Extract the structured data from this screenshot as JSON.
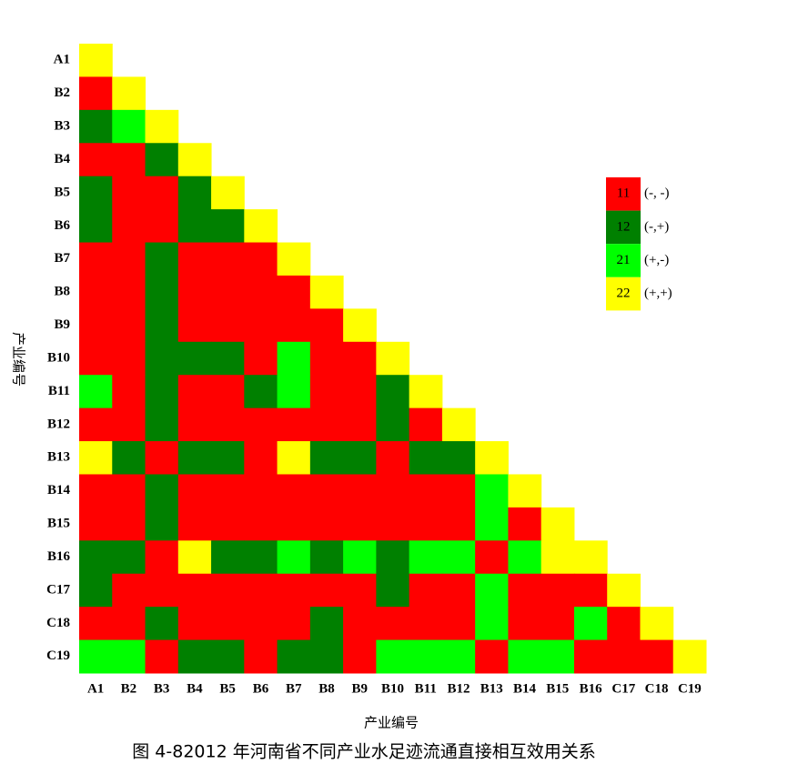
{
  "chart_data": {
    "type": "heatmap",
    "categories": [
      "A1",
      "B2",
      "B3",
      "B4",
      "B5",
      "B6",
      "B7",
      "B8",
      "B9",
      "B10",
      "B11",
      "B12",
      "B13",
      "B14",
      "B15",
      "B16",
      "C17",
      "C18",
      "C19"
    ],
    "x_label": "产业编号",
    "y_label": "产业编号",
    "caption": "图 4-82012 年河南省不同产业水足迹流通直接相互效用关系",
    "matrix": [
      [
        22
      ],
      [
        11,
        22
      ],
      [
        12,
        21,
        22
      ],
      [
        11,
        11,
        12,
        22
      ],
      [
        12,
        11,
        11,
        12,
        22
      ],
      [
        12,
        11,
        11,
        12,
        12,
        22
      ],
      [
        11,
        11,
        12,
        11,
        11,
        11,
        22
      ],
      [
        11,
        11,
        12,
        11,
        11,
        11,
        11,
        22
      ],
      [
        11,
        11,
        12,
        11,
        11,
        11,
        11,
        11,
        22
      ],
      [
        11,
        11,
        12,
        12,
        12,
        11,
        21,
        11,
        11,
        22
      ],
      [
        21,
        11,
        12,
        11,
        11,
        12,
        21,
        11,
        11,
        12,
        22
      ],
      [
        11,
        11,
        12,
        11,
        11,
        11,
        11,
        11,
        11,
        12,
        11,
        22
      ],
      [
        22,
        12,
        11,
        12,
        12,
        11,
        22,
        12,
        12,
        11,
        12,
        12,
        22
      ],
      [
        11,
        11,
        12,
        11,
        11,
        11,
        11,
        11,
        11,
        11,
        11,
        11,
        21,
        22
      ],
      [
        11,
        11,
        12,
        11,
        11,
        11,
        11,
        11,
        11,
        11,
        11,
        11,
        21,
        11,
        22
      ],
      [
        12,
        12,
        11,
        22,
        12,
        12,
        21,
        12,
        21,
        12,
        21,
        21,
        11,
        21,
        22,
        22
      ],
      [
        12,
        11,
        11,
        11,
        11,
        11,
        11,
        11,
        11,
        12,
        11,
        11,
        21,
        11,
        11,
        11,
        22
      ],
      [
        11,
        11,
        12,
        11,
        11,
        11,
        11,
        12,
        11,
        11,
        11,
        11,
        21,
        11,
        11,
        21,
        11,
        22
      ],
      [
        21,
        21,
        11,
        12,
        12,
        11,
        12,
        12,
        11,
        21,
        21,
        21,
        11,
        21,
        21,
        11,
        11,
        11,
        22
      ]
    ],
    "legend": [
      {
        "code": 11,
        "label": "(-, -)",
        "color": "#ff0000"
      },
      {
        "code": 12,
        "label": "(-,+)",
        "color": "#008000"
      },
      {
        "code": 21,
        "label": "(+,-)",
        "color": "#00ff00"
      },
      {
        "code": 22,
        "label": "(+,+)",
        "color": "#ffff00"
      }
    ]
  }
}
